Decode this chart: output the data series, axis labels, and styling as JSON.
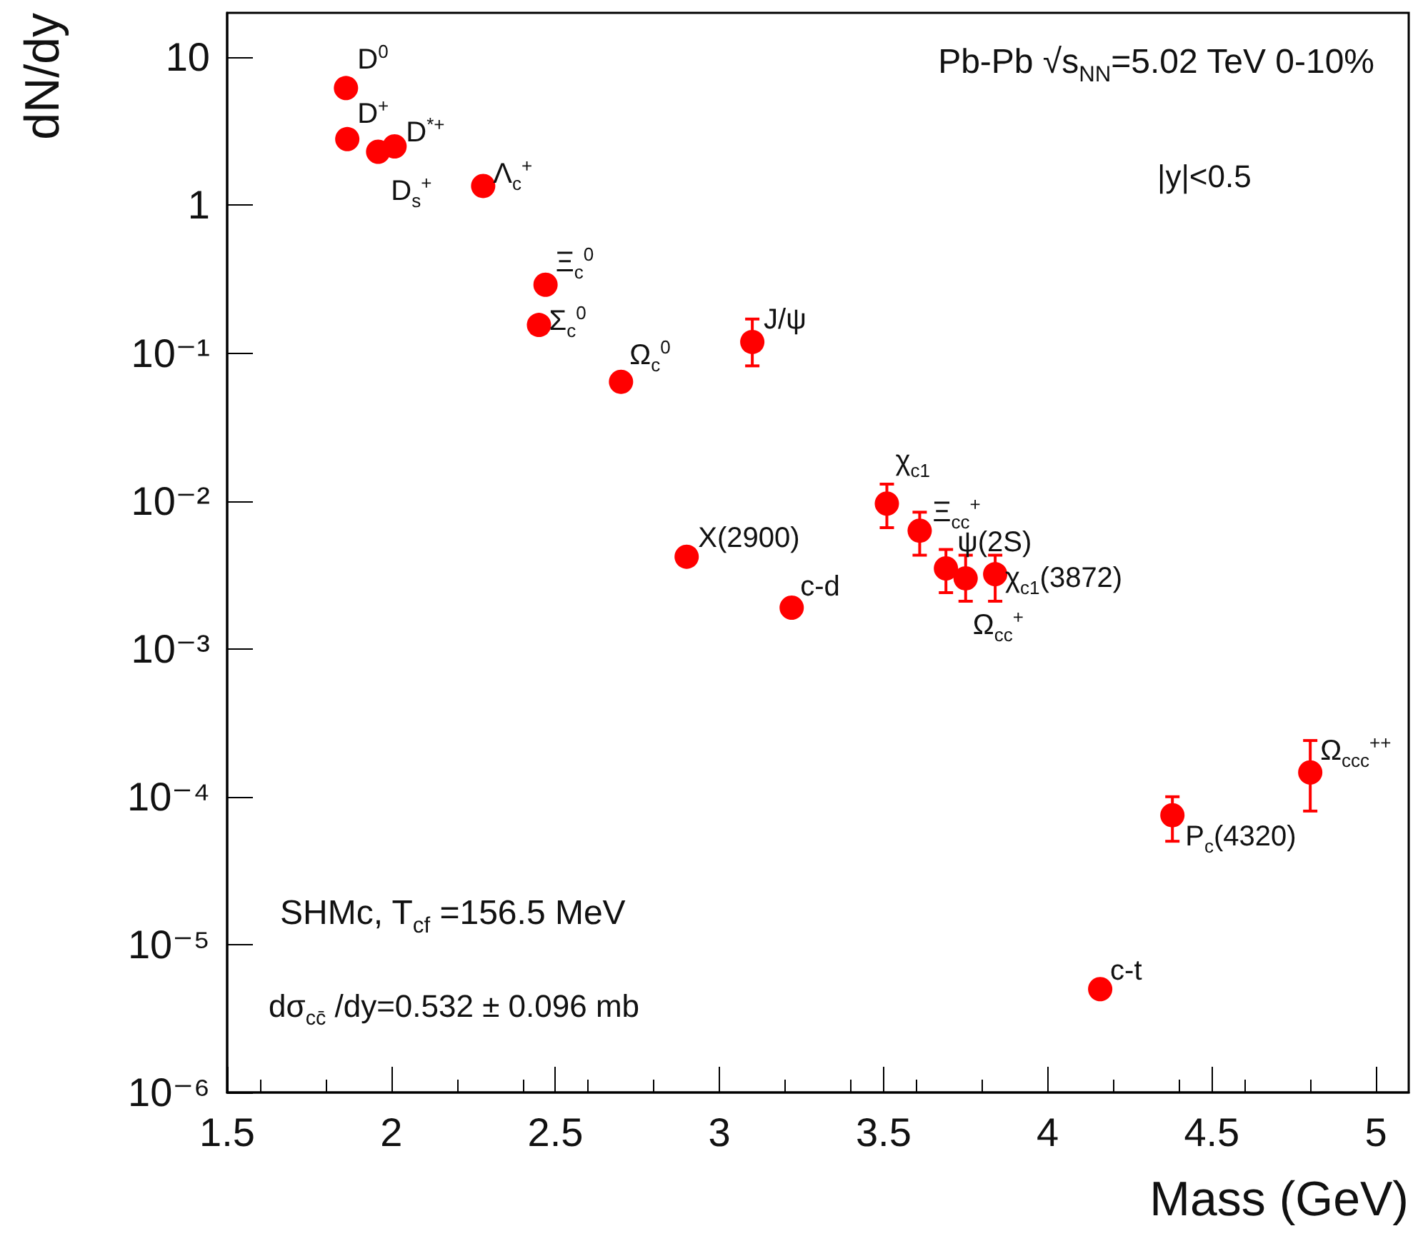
{
  "chart_data": {
    "type": "scatter",
    "xlabel": "Mass (GeV)",
    "ylabel": "dN/dy",
    "x": [
      1.862,
      1.866,
      1.96,
      2.01,
      2.28,
      2.47,
      2.45,
      2.7,
      3.1,
      2.9,
      3.22,
      3.51,
      3.61,
      3.69,
      3.75,
      3.84,
      4.38,
      4.8,
      4.16
    ],
    "series": [
      {
        "color": "#ff0000",
        "values": [
          6.2,
          2.8,
          2.3,
          2.5,
          1.35,
          0.29,
          0.155,
          0.064,
          0.119,
          0.0042,
          0.0019,
          0.0096,
          0.0063,
          0.0035,
          0.003,
          0.0032,
          7.5e-05,
          0.000146,
          5e-06
        ],
        "errors": [
          null,
          null,
          null,
          null,
          null,
          null,
          null,
          null,
          [
            0.082,
            0.17
          ],
          null,
          null,
          [
            0.0066,
            0.013
          ],
          [
            0.0043,
            0.0084
          ],
          [
            0.0024,
            0.0047
          ],
          [
            0.0021,
            0.0043
          ],
          [
            0.0021,
            0.0043
          ],
          [
            5e-05,
            0.0001
          ],
          [
            8e-05,
            0.00024
          ],
          null
        ]
      }
    ],
    "xlim": [
      1.5,
      5.1
    ],
    "xticks": [
      1.5,
      2,
      2.5,
      3,
      3.5,
      4,
      4.5,
      5
    ],
    "ylim": [
      1e-06,
      20
    ],
    "yticks": [
      {
        "value": 1e-06,
        "label": "10⁻⁶"
      },
      {
        "value": 1e-05,
        "label": "10⁻⁵"
      },
      {
        "value": 0.0001,
        "label": "10⁻⁴"
      },
      {
        "value": 0.001,
        "label": "10⁻³"
      },
      {
        "value": 0.01,
        "label": "10⁻²"
      },
      {
        "value": 0.1,
        "label": "10⁻¹"
      },
      1,
      10
    ],
    "log": "y",
    "grid": false,
    "marker": "circle",
    "annotations": [
      {
        "text": "D$^{0}$",
        "x": 1.862,
        "y": 6.2
      },
      {
        "text": "D$^{+}$",
        "x": 1.866,
        "y": 2.8
      },
      {
        "text": "D$_{s}$$^{+}$",
        "x": 1.96,
        "y": 2.3
      },
      {
        "text": "D$^{*+}$",
        "x": 2.01,
        "y": 2.5
      },
      {
        "text": "Λ$_{c}$$^{+}$",
        "x": 2.28,
        "y": 1.35
      },
      {
        "text": "Ξ$_{c}$$^{0}$",
        "x": 2.47,
        "y": 0.29
      },
      {
        "text": "Σ$_{c}$$^{0}$",
        "x": 2.45,
        "y": 0.155
      },
      {
        "text": "Ω$_{c}$$^{0}$",
        "x": 2.7,
        "y": 0.064
      },
      {
        "text": "J/ψ",
        "x": 3.1,
        "y": 0.119
      },
      {
        "text": "X(2900)",
        "x": 2.9,
        "y": 0.0042
      },
      {
        "text": "c-d",
        "x": 3.22,
        "y": 0.0019
      },
      {
        "text": "χ$_{c1}$",
        "x": 3.51,
        "y": 0.0096
      },
      {
        "text": "Ξ$_{cc}$$^{+}$",
        "x": 3.61,
        "y": 0.0063
      },
      {
        "text": "ψ(2S)",
        "x": 3.69,
        "y": 0.0035
      },
      {
        "text": "Ω$_{cc}$$^{+}$",
        "x": 3.75,
        "y": 0.003
      },
      {
        "text": "χ$_{c1}$(3872)",
        "x": 3.84,
        "y": 0.0032
      },
      {
        "text": "P$_{c}$(4320)",
        "x": 4.38,
        "y": 7.5e-05
      },
      {
        "text": "Ω$_{ccc}$$^{++}$",
        "x": 4.8,
        "y": 0.000146
      },
      {
        "text": "c-t",
        "x": 4.16,
        "y": 5e-06
      },
      "Pb-Pb √s$_{NN}$=5.02 TeV 0-10%",
      "|y|<0.5",
      "SHMc, T$_{cf}$ =156.5 MeV",
      "dσ$_{cc̄}$ /dy=0.532 ± 0.096 mb"
    ]
  }
}
